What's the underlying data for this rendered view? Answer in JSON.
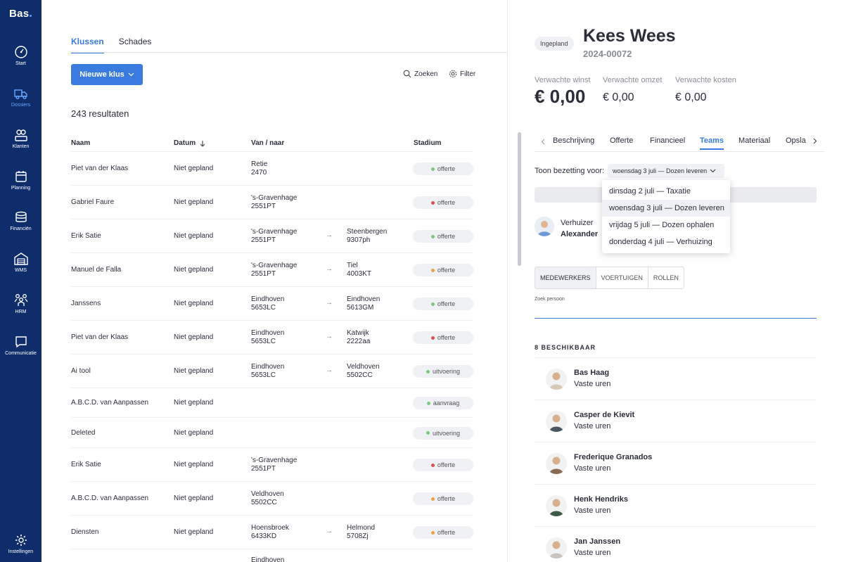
{
  "app": {
    "logo": "Bas"
  },
  "sidebar": {
    "items": [
      {
        "label": "Start",
        "icon": "gauge-icon"
      },
      {
        "label": "Dossiers",
        "icon": "truck-icon",
        "active": true
      },
      {
        "label": "Klanten",
        "icon": "customers-icon"
      },
      {
        "label": "Planning",
        "icon": "calendar-icon"
      },
      {
        "label": "Financiën",
        "icon": "coins-icon"
      },
      {
        "label": "WMS",
        "icon": "warehouse-icon"
      },
      {
        "label": "HRM",
        "icon": "people-icon"
      },
      {
        "label": "Communicatie",
        "icon": "chat-icon"
      }
    ],
    "settings": {
      "label": "Instellingen",
      "icon": "gear-icon"
    }
  },
  "left": {
    "tabs": [
      "Klussen",
      "Schades"
    ],
    "new_button": "Nieuwe klus",
    "search": "Zoeken",
    "filter": "Filter",
    "result_count": "243 resultaten",
    "columns": {
      "name": "Naam",
      "date": "Datum",
      "route": "Van / naar",
      "stage": "Stadium"
    },
    "rows": [
      {
        "name": "Piet van der Klaas",
        "date": "Niet gepland",
        "from1": "Retie",
        "from2": "2470",
        "to1": "",
        "to2": "",
        "stage": "offerte",
        "dot": "#7bc97b"
      },
      {
        "name": "Gabriel Faure",
        "date": "Niet gepland",
        "from1": "'s-Gravenhage",
        "from2": "2551PT",
        "to1": "",
        "to2": "",
        "stage": "offerte",
        "dot": "#d9534f"
      },
      {
        "name": "Erik Satie",
        "date": "Niet gepland",
        "from1": "'s-Gravenhage",
        "from2": "2551PT",
        "to1": "Steenbergen",
        "to2": "9307ph",
        "stage": "offerte",
        "dot": "#7bc97b"
      },
      {
        "name": "Manuel de Falla",
        "date": "Niet gepland",
        "from1": "'s-Gravenhage",
        "from2": "2551PT",
        "to1": "Tiel",
        "to2": "4003KT",
        "stage": "offerte",
        "dot": "#f0a04b"
      },
      {
        "name": "Janssens",
        "date": "Niet gepland",
        "from1": "Eindhoven",
        "from2": "5653LC",
        "to1": "Eindhoven",
        "to2": "5613GM",
        "stage": "offerte",
        "dot": "#7bc97b"
      },
      {
        "name": "Piet van der Klaas",
        "date": "Niet gepland",
        "from1": "Eindhoven",
        "from2": "5653LC",
        "to1": "Katwijk",
        "to2": "2222aa",
        "stage": "offerte",
        "dot": "#d9534f"
      },
      {
        "name": "Ai tool",
        "date": "Niet gepland",
        "from1": "Eindhoven",
        "from2": "5653LC",
        "to1": "Veldhoven",
        "to2": "5502CC",
        "stage": "uitvoering",
        "dot": "#7bc97b"
      },
      {
        "name": "A.B.C.D. van Aanpassen",
        "date": "Niet gepland",
        "from1": "",
        "from2": "",
        "to1": "",
        "to2": "",
        "stage": "aanvraag",
        "dot": "#7bc97b"
      },
      {
        "name": "Deleted",
        "date": "Niet gepland",
        "from1": "",
        "from2": "",
        "to1": "",
        "to2": "",
        "stage": "uitvoering",
        "dot": "#7bc97b"
      },
      {
        "name": "Erik Satie",
        "date": "Niet gepland",
        "from1": "'s-Gravenhage",
        "from2": "2551PT",
        "to1": "",
        "to2": "",
        "stage": "offerte",
        "dot": "#d9534f"
      },
      {
        "name": "A.B.C.D. van Aanpassen",
        "date": "Niet gepland",
        "from1": "Veldhoven",
        "from2": "5502CC",
        "to1": "",
        "to2": "",
        "stage": "offerte",
        "dot": "#f0a04b"
      },
      {
        "name": "Diensten",
        "date": "Niet gepland",
        "from1": "Hoensbroek",
        "from2": "6433KD",
        "to1": "Helmond",
        "to2": "5708Zj",
        "stage": "offerte",
        "dot": "#f0a04b"
      },
      {
        "name": "",
        "date": "",
        "from1": "Eindhoven",
        "from2": "",
        "to1": "",
        "to2": "",
        "stage": "",
        "dot": ""
      }
    ]
  },
  "right": {
    "status": "Ingepland",
    "title": "Kees Wees",
    "job_number": "2024-00072",
    "metrics": [
      {
        "label": "Verwachte winst",
        "value": "€ 0,00"
      },
      {
        "label": "Verwachte omzet",
        "value": "€ 0,00"
      },
      {
        "label": "Verwachte kosten",
        "value": "€ 0,00"
      }
    ],
    "tabs": [
      "Beschrijving",
      "Offerte",
      "Financieel",
      "Teams",
      "Materiaal",
      "Opsla"
    ],
    "active_tab": "Teams",
    "show_label": "Toon bezetting voor:",
    "selected_day": "woensdag 3 juli — Dozen leveren",
    "day_options": [
      "dinsdag 2 juli — Taxatie",
      "woensdag 3 juli — Dozen leveren",
      "vrijdag 5 juli — Dozen ophalen",
      "donderdag 4 juli — Verhuizing"
    ],
    "role": {
      "label": "Verhuizer",
      "name": "Alexander"
    },
    "segments": [
      "MEDEWERKERS",
      "VOERTUIGEN",
      "ROLLEN"
    ],
    "search_label": "Zoek persoon",
    "available_heading": "8 BESCHIKBAAR",
    "people": [
      {
        "name": "Bas Haag",
        "hours": "Vaste uren",
        "color": "#d9c8b5"
      },
      {
        "name": "Casper de Kievit",
        "hours": "Vaste uren",
        "color": "#4a5563"
      },
      {
        "name": "Frederique Granados",
        "hours": "Vaste uren",
        "color": "#8a6a55"
      },
      {
        "name": "Henk Hendriks",
        "hours": "Vaste uren",
        "color": "#3d5a45"
      },
      {
        "name": "Jan Janssen",
        "hours": "Vaste uren",
        "color": "#c9c4bf"
      }
    ]
  }
}
